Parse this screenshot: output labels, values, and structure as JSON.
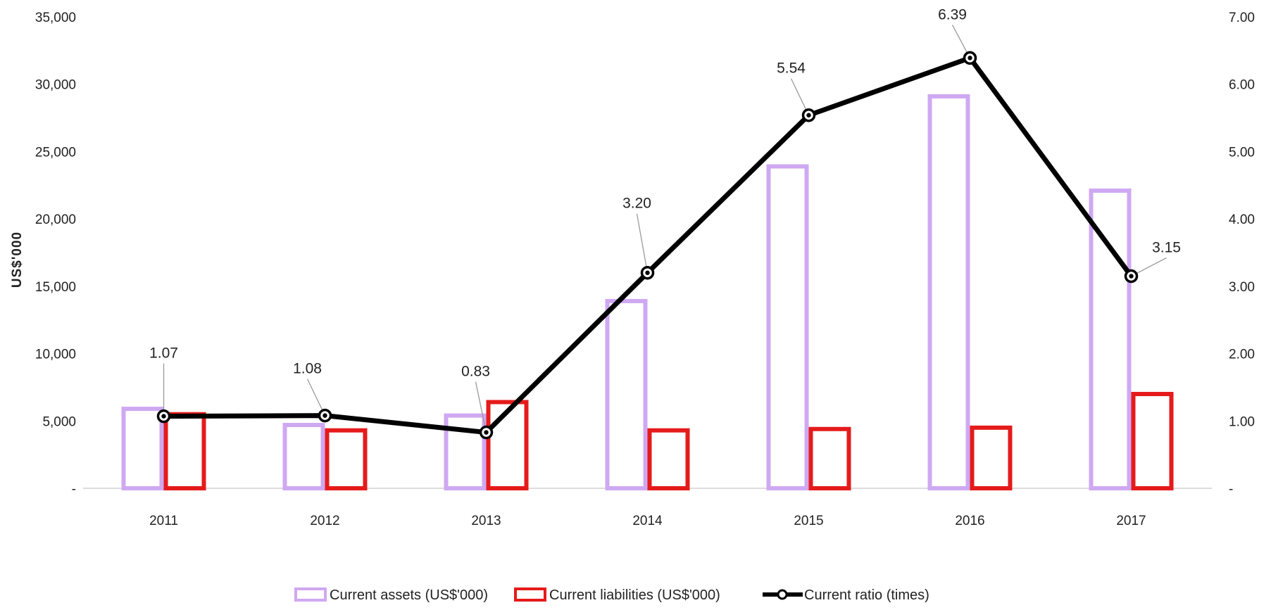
{
  "chart_data": {
    "type": "bar",
    "categories": [
      "2011",
      "2012",
      "2013",
      "2014",
      "2015",
      "2016",
      "2017"
    ],
    "ylabel": "US$'000",
    "ylim": [
      0,
      35000
    ],
    "y_ticks": [
      "-",
      "5,000",
      "10,000",
      "15,000",
      "20,000",
      "25,000",
      "30,000",
      "35,000"
    ],
    "y2lim": [
      0,
      7
    ],
    "y2_ticks": [
      "-",
      "1.00",
      "2.00",
      "3.00",
      "4.00",
      "5.00",
      "6.00",
      "7.00"
    ],
    "legend_position": "bottom",
    "grid": false,
    "series": [
      {
        "name": "Current assets (US$'000)",
        "type": "bar",
        "axis": "left",
        "color": "#cfa8f2",
        "values": [
          5900,
          4700,
          5400,
          13900,
          23900,
          29100,
          22100
        ]
      },
      {
        "name": "Current liabilities (US$'000)",
        "type": "bar",
        "axis": "left",
        "color": "#e51b1b",
        "values": [
          5500,
          4300,
          6400,
          4300,
          4400,
          4500,
          7000
        ]
      },
      {
        "name": "Current ratio (times)",
        "type": "line",
        "axis": "right",
        "color": "#000000",
        "values": [
          1.07,
          1.08,
          0.83,
          3.2,
          5.54,
          6.39,
          3.15
        ],
        "labels": [
          "1.07",
          "1.08",
          "0.83",
          "3.20",
          "5.54",
          "6.39",
          "3.15"
        ]
      }
    ]
  }
}
